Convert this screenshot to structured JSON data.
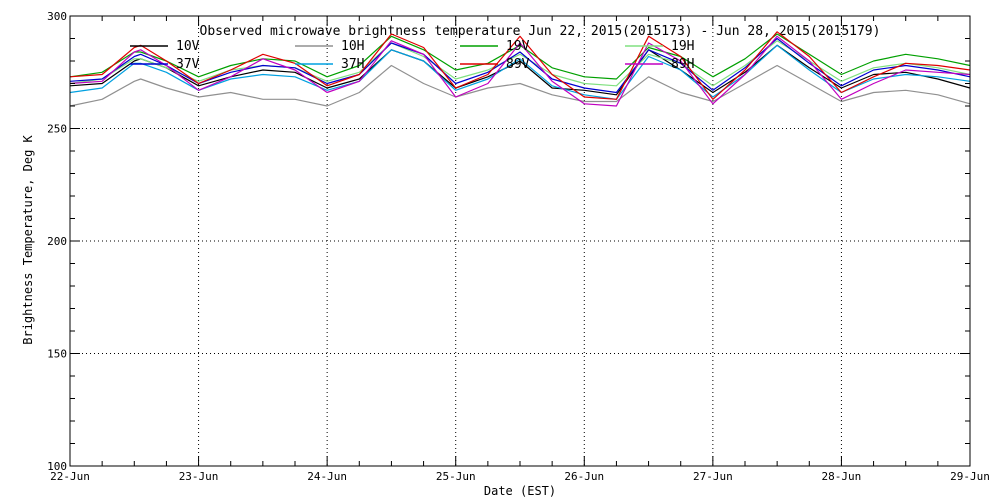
{
  "chart_data": {
    "type": "line",
    "title": "Observed microwave brightness temperature Jun 22, 2015(2015173) - Jun 28, 2015(2015179)",
    "xlabel": "Date (EST)",
    "ylabel": "Brightness Temperature, Deg K",
    "xlim": [
      0,
      7
    ],
    "ylim": [
      100,
      300
    ],
    "x_tick_labels": [
      "22-Jun",
      "23-Jun",
      "24-Jun",
      "25-Jun",
      "26-Jun",
      "27-Jun",
      "28-Jun",
      "29-Jun"
    ],
    "y_ticks": [
      100,
      150,
      200,
      250,
      300
    ],
    "y_grid": [
      150,
      200,
      250
    ],
    "grid": "dotted",
    "legend_position": "top",
    "x": [
      0,
      0.25,
      0.5,
      0.55,
      0.75,
      1.0,
      1.25,
      1.5,
      1.75,
      2.0,
      2.25,
      2.5,
      2.75,
      3.0,
      3.25,
      3.5,
      3.75,
      4.0,
      4.25,
      4.5,
      4.75,
      5.0,
      5.25,
      5.5,
      5.75,
      6.0,
      6.25,
      6.5,
      6.75,
      7.0
    ],
    "series": [
      {
        "name": "10V",
        "color": "#000000",
        "values": [
          269,
          270,
          280,
          281,
          277,
          269,
          273,
          276,
          275,
          268,
          272,
          285,
          280,
          268,
          273,
          280,
          268,
          267,
          265,
          285,
          276,
          266,
          275,
          287,
          277,
          268,
          274,
          275,
          272,
          268
        ]
      },
      {
        "name": "10H",
        "color": "#909090",
        "values": [
          260,
          263,
          271,
          272,
          268,
          264,
          266,
          263,
          263,
          260,
          266,
          278,
          270,
          264,
          268,
          270,
          265,
          262,
          262,
          273,
          266,
          262,
          270,
          278,
          270,
          262,
          266,
          267,
          265,
          261
        ]
      },
      {
        "name": "19V",
        "color": "#00a000",
        "values": [
          273,
          275,
          284,
          284,
          280,
          273,
          278,
          281,
          280,
          273,
          278,
          291,
          285,
          276,
          279,
          287,
          277,
          273,
          272,
          286,
          282,
          273,
          281,
          292,
          283,
          274,
          280,
          283,
          281,
          278
        ]
      },
      {
        "name": "19H",
        "color": "#80e080",
        "values": [
          270,
          272,
          281,
          281,
          277,
          271,
          276,
          278,
          277,
          271,
          275,
          288,
          282,
          272,
          276,
          283,
          274,
          270,
          269,
          283,
          279,
          269,
          278,
          289,
          280,
          271,
          277,
          279,
          277,
          274
        ]
      },
      {
        "name": "37V",
        "color": "#0000d0",
        "values": [
          271,
          272,
          282,
          283,
          278,
          270,
          275,
          278,
          277,
          270,
          274,
          288,
          283,
          270,
          275,
          284,
          272,
          268,
          266,
          285,
          279,
          267,
          277,
          290,
          279,
          269,
          276,
          278,
          276,
          273
        ]
      },
      {
        "name": "37H",
        "color": "#00a0e0",
        "values": [
          266,
          268,
          279,
          279,
          275,
          267,
          272,
          274,
          273,
          267,
          271,
          285,
          280,
          267,
          272,
          281,
          269,
          265,
          263,
          282,
          276,
          264,
          274,
          287,
          276,
          266,
          272,
          274,
          273,
          271
        ]
      },
      {
        "name": "89V",
        "color": "#e00000",
        "values": [
          273,
          274,
          286,
          287,
          280,
          270,
          276,
          283,
          279,
          269,
          274,
          292,
          286,
          268,
          274,
          291,
          274,
          264,
          263,
          291,
          282,
          263,
          276,
          293,
          282,
          266,
          273,
          279,
          278,
          276
        ]
      },
      {
        "name": "89H",
        "color": "#c000c0",
        "values": [
          270,
          271,
          284,
          285,
          278,
          267,
          273,
          281,
          276,
          266,
          271,
          289,
          283,
          264,
          270,
          288,
          271,
          261,
          260,
          288,
          280,
          261,
          274,
          291,
          280,
          263,
          270,
          276,
          275,
          274
        ]
      }
    ]
  }
}
